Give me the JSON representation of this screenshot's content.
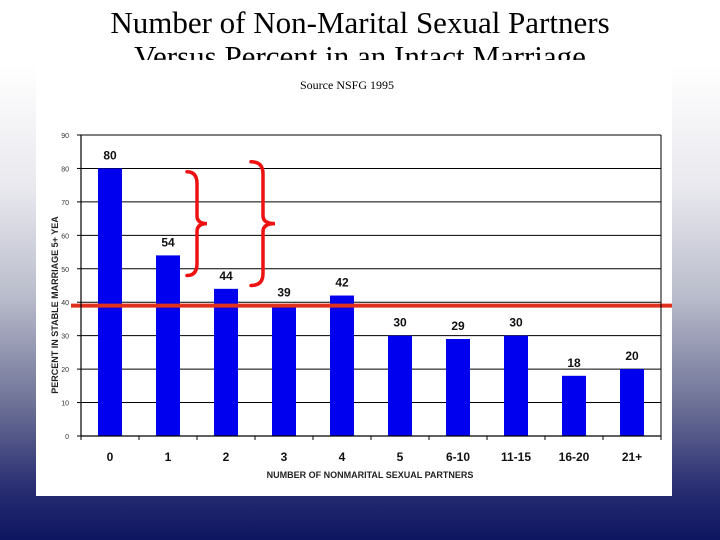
{
  "slide": {
    "title_line1": "Number of Non-Marital Sexual Partners",
    "title_line2": "Versus Percent in an Intact Marriage",
    "source": "Source NSFG 1995"
  },
  "colors": {
    "bar": "#0000ee",
    "reference_line": "#e0301e",
    "brace": "#ee1111",
    "grid": "#000000"
  },
  "chart_data": {
    "type": "bar",
    "categories": [
      "0",
      "1",
      "2",
      "3",
      "4",
      "5",
      "6-10",
      "11-15",
      "16-20",
      "21+"
    ],
    "values": [
      80,
      54,
      44,
      39,
      42,
      30,
      29,
      30,
      18,
      20
    ],
    "data_labels": [
      "80",
      "54",
      "44",
      "39",
      "42",
      "30",
      "29",
      "30",
      "18",
      "20"
    ],
    "ylabel": "PERCENT IN STABLE MARRIAGE 5+ YEA",
    "xlabel": "NUMBER OF NONMARITAL SEXUAL PARTNERS",
    "ylim": [
      0,
      90
    ],
    "yticks": [
      "0",
      "10",
      "20",
      "30",
      "40",
      "50",
      "60",
      "70",
      "80",
      "90"
    ],
    "grid": true,
    "reference_line_value": 39,
    "annotations": [
      {
        "type": "brace",
        "from_category": "1",
        "to_category": "2"
      },
      {
        "type": "brace",
        "from_category": "1",
        "to_category": "3"
      }
    ]
  }
}
